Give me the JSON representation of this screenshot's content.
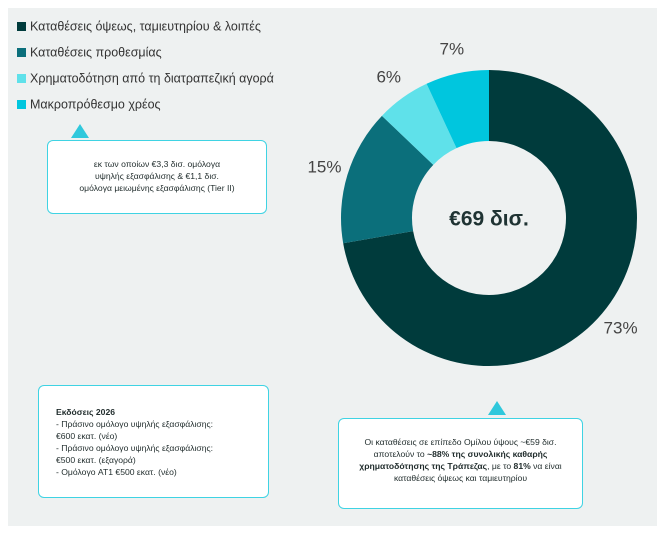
{
  "chart_data": {
    "type": "donut",
    "center_label": "€69 δισ.",
    "categories": [
      "Καταθέσεις όψεως, ταμιευτηρίου & λοιπές",
      "Καταθέσεις προθεσμίας",
      "Χρηματοδότηση από τη διατραπεζική αγορά",
      "Μακροπρόθεσμο χρέος"
    ],
    "values": [
      73,
      15,
      6,
      7
    ],
    "value_labels": [
      "73%",
      "15%",
      "6%",
      "7%"
    ],
    "colors": [
      "#003b3c",
      "#0b6f7b",
      "#5fe1ea",
      "#00c6de"
    ],
    "annotations": [
      {
        "lines": [
          "εκ των οποίων €3,3 δισ. ομόλογα",
          "υψηλής εξασφάλισης & €1,1 δισ.",
          "ομόλογα μειωμένης εξασφάλισης (Tier II)"
        ]
      },
      {
        "parts": [
          "Οι καταθέσεις σε επίπεδο Ομίλου ύψους ~€59 δισ. αποτελούν το ",
          "~88% της συνολικής καθαρής χρηματοδότησης της Τράπεζας",
          ", με το ",
          "81%",
          " να είναι καταθέσεις όψεως και ταμιευτηρίου"
        ]
      },
      {
        "title": "Εκδόσεις 2026",
        "lines": [
          "- Πράσινο ομόλογο υψηλής εξασφάλισης:",
          "€600 εκατ. (νέο)",
          "- Πράσινο ομόλογο υψηλής εξασφάλισης:",
          "€500 εκατ. (εξαγορά)",
          "- Ομόλογο AT1 €500 εκατ. (νέο)"
        ]
      }
    ]
  }
}
